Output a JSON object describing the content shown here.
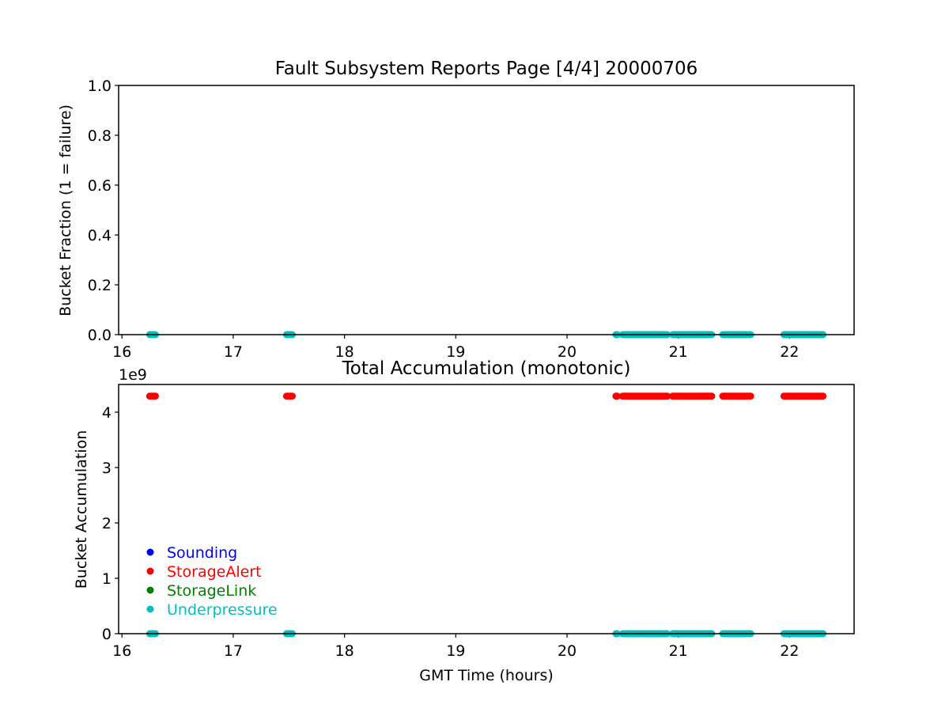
{
  "chart_data": [
    {
      "type": "scatter",
      "title": "Fault Subsystem Reports Page [4/4] 20000706",
      "xlabel": "",
      "ylabel": "Bucket Fraction (1 = failure)",
      "xlim": [
        15.97,
        22.58
      ],
      "ylim": [
        0.0,
        1.0
      ],
      "xticks": [
        16,
        17,
        18,
        19,
        20,
        21,
        22
      ],
      "xtick_labels": [
        "16",
        "17",
        "18",
        "19",
        "20",
        "21",
        "22"
      ],
      "yticks": [
        0.0,
        0.2,
        0.4,
        0.6,
        0.8,
        1.0
      ],
      "ytick_labels": [
        "0.0",
        "0.2",
        "0.4",
        "0.6",
        "0.8",
        "1.0"
      ],
      "grid": false,
      "series": [
        {
          "name": "Underpressure",
          "color": "#00bfbf",
          "marker": "circle",
          "segments": [
            {
              "x_start": 16.25,
              "x_end": 16.3,
              "y": 0.0
            },
            {
              "x_start": 17.48,
              "x_end": 17.53,
              "y": 0.0
            },
            {
              "x_start": 20.44,
              "x_end": 20.45,
              "y": 0.0
            },
            {
              "x_start": 20.5,
              "x_end": 20.9,
              "y": 0.0
            },
            {
              "x_start": 20.95,
              "x_end": 21.3,
              "y": 0.0
            },
            {
              "x_start": 21.4,
              "x_end": 21.65,
              "y": 0.0
            },
            {
              "x_start": 21.95,
              "x_end": 22.3,
              "y": 0.0
            }
          ]
        }
      ]
    },
    {
      "type": "scatter",
      "title": "Total Accumulation (monotonic)",
      "xlabel": "GMT Time (hours)",
      "ylabel": "Bucket Accumulation",
      "y_scale_label": "1e9",
      "y_multiplier": 1000000000,
      "xlim": [
        15.97,
        22.58
      ],
      "ylim": [
        0,
        4.5
      ],
      "xticks": [
        16,
        17,
        18,
        19,
        20,
        21,
        22
      ],
      "xtick_labels": [
        "16",
        "17",
        "18",
        "19",
        "20",
        "21",
        "22"
      ],
      "yticks": [
        0,
        1,
        2,
        3,
        4
      ],
      "ytick_labels": [
        "0",
        "1",
        "2",
        "3",
        "4"
      ],
      "grid": false,
      "legend_placement": "lower-left",
      "legend": [
        {
          "label": "Sounding",
          "color": "#0000ff"
        },
        {
          "label": "StorageAlert",
          "color": "#ff0000"
        },
        {
          "label": "StorageLink",
          "color": "#008000"
        },
        {
          "label": "Underpressure",
          "color": "#00bfbf"
        }
      ],
      "series": [
        {
          "name": "StorageAlert",
          "color": "#ff0000",
          "marker": "circle",
          "segments": [
            {
              "x_start": 16.25,
              "x_end": 16.3,
              "y": 4.29
            },
            {
              "x_start": 17.48,
              "x_end": 17.53,
              "y": 4.29
            },
            {
              "x_start": 20.44,
              "x_end": 20.45,
              "y": 4.29
            },
            {
              "x_start": 20.5,
              "x_end": 20.9,
              "y": 4.29
            },
            {
              "x_start": 20.95,
              "x_end": 21.3,
              "y": 4.29
            },
            {
              "x_start": 21.4,
              "x_end": 21.65,
              "y": 4.29
            },
            {
              "x_start": 21.95,
              "x_end": 22.3,
              "y": 4.29
            }
          ]
        },
        {
          "name": "Underpressure",
          "color": "#00bfbf",
          "marker": "circle",
          "segments": [
            {
              "x_start": 16.25,
              "x_end": 16.3,
              "y": 0
            },
            {
              "x_start": 17.48,
              "x_end": 17.53,
              "y": 0
            },
            {
              "x_start": 20.44,
              "x_end": 20.45,
              "y": 0
            },
            {
              "x_start": 20.5,
              "x_end": 20.9,
              "y": 0
            },
            {
              "x_start": 20.95,
              "x_end": 21.3,
              "y": 0
            },
            {
              "x_start": 21.4,
              "x_end": 21.65,
              "y": 0
            },
            {
              "x_start": 21.95,
              "x_end": 22.3,
              "y": 0
            }
          ]
        }
      ]
    }
  ]
}
